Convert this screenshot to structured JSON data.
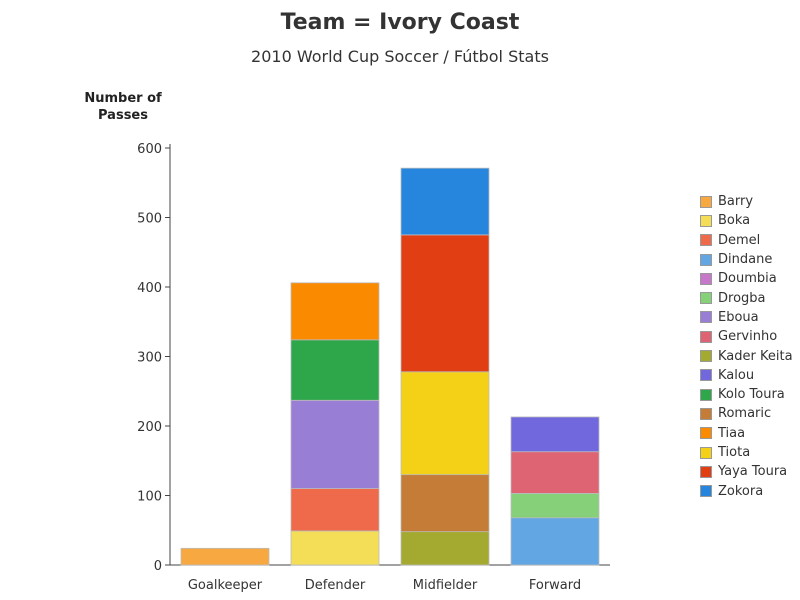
{
  "chart_data": {
    "type": "bar",
    "stacked": true,
    "title": "Team = Ivory Coast",
    "subtitle": "2010 World Cup Soccer / Fútbol Stats",
    "ylabel_lines": [
      "Number of",
      "Passes"
    ],
    "xlabel": "",
    "ylim": [
      0,
      600
    ],
    "yticks": [
      0,
      100,
      200,
      300,
      400,
      500,
      600
    ],
    "categories": [
      "Goalkeeper",
      "Defender",
      "Midfielder",
      "Forward"
    ],
    "series": [
      {
        "name": "Barry",
        "color": "#F8A840",
        "values": [
          24,
          0,
          0,
          0
        ]
      },
      {
        "name": "Boka",
        "color": "#F4DE58",
        "values": [
          0,
          49,
          0,
          0
        ]
      },
      {
        "name": "Demel",
        "color": "#EE6A4A",
        "values": [
          0,
          61,
          0,
          0
        ]
      },
      {
        "name": "Dindane",
        "color": "#62A6E4",
        "values": [
          0,
          0,
          0,
          68
        ]
      },
      {
        "name": "Doumbia",
        "color": "#C878C8",
        "values": [
          0,
          0,
          0,
          0
        ]
      },
      {
        "name": "Drogba",
        "color": "#86D07A",
        "values": [
          0,
          0,
          0,
          35
        ]
      },
      {
        "name": "Eboua",
        "color": "#987ED4",
        "values": [
          0,
          127,
          0,
          0
        ]
      },
      {
        "name": "Gervinho",
        "color": "#DE6474",
        "values": [
          0,
          0,
          0,
          60
        ]
      },
      {
        "name": "Kader Keita",
        "color": "#A4AA30",
        "values": [
          0,
          0,
          48,
          0
        ]
      },
      {
        "name": "Kalou",
        "color": "#7068DC",
        "values": [
          0,
          0,
          0,
          50
        ]
      },
      {
        "name": "Kolo Toura",
        "color": "#2EA64A",
        "values": [
          0,
          87,
          0,
          0
        ]
      },
      {
        "name": "Romaric",
        "color": "#C47C36",
        "values": [
          0,
          0,
          82,
          0
        ]
      },
      {
        "name": "Tiaa",
        "color": "#FA8A00",
        "values": [
          0,
          82,
          0,
          0
        ]
      },
      {
        "name": "Tiota",
        "color": "#F4D016",
        "values": [
          0,
          0,
          148,
          0
        ]
      },
      {
        "name": "Yaya Toura",
        "color": "#E23E14",
        "values": [
          0,
          0,
          197,
          0
        ]
      },
      {
        "name": "Zokora",
        "color": "#2686DE",
        "values": [
          0,
          0,
          96,
          0
        ]
      }
    ],
    "grid": false,
    "legend_position": "right"
  }
}
